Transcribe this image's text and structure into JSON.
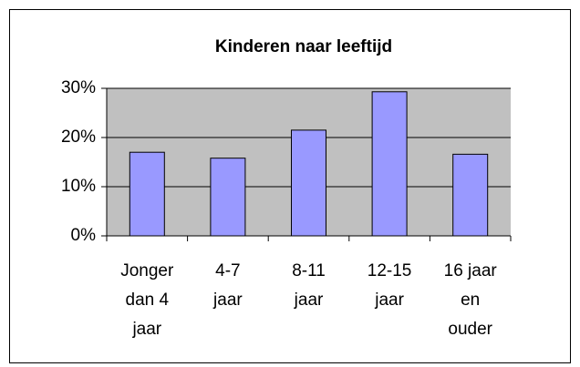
{
  "chart_data": {
    "type": "bar",
    "title": "Kinderen naar leeftijd",
    "categories": [
      "Jonger dan 4 jaar",
      "4-7 jaar",
      "8-11 jaar",
      "12-15 jaar",
      "16 jaar en ouder"
    ],
    "values": [
      17,
      15.8,
      21.5,
      29.3,
      16.6
    ],
    "color": "#9999ff",
    "ylim": [
      0,
      30
    ],
    "yticks": [
      {
        "value": 0,
        "label": "0%"
      },
      {
        "value": 10,
        "label": "10%"
      },
      {
        "value": 20,
        "label": "20%"
      },
      {
        "value": 30,
        "label": "30%"
      }
    ],
    "grid": true
  }
}
